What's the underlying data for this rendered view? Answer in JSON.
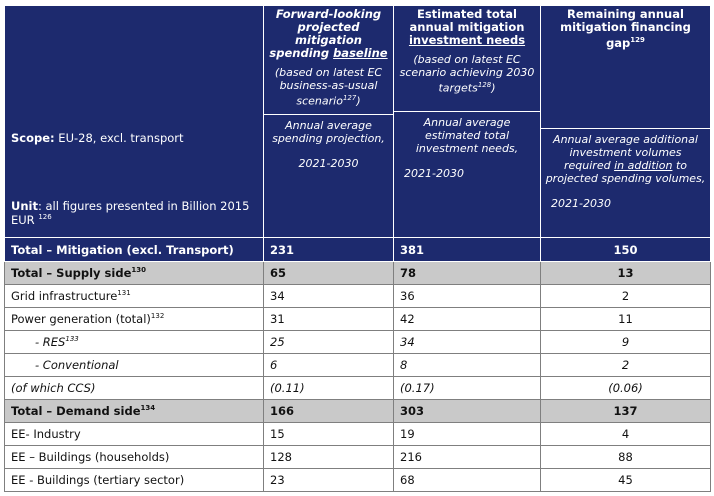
{
  "header": {
    "scope_label": "Scope:",
    "scope_value": "EU-28, excl. transport",
    "unit_label": "Unit",
    "unit_value": ": all figures presented in Billion 2015 EUR",
    "unit_note": "126",
    "col1": {
      "title": "Forward-looking projected mitigation spending",
      "title_underlined": "baseline",
      "sub": "(based on latest EC business-as-usual scenario",
      "sub_note": "127",
      "sub_end": ")",
      "desc": "Annual average spending projection,",
      "period": "2021-2030"
    },
    "col2": {
      "title": "Estimated total annual mitigation",
      "title_underlined": "investment needs",
      "sub": "(based on latest EC scenario achieving 2030 targets",
      "sub_note": "128",
      "sub_end": ")",
      "desc": "Annual average estimated total investment needs,",
      "period": "2021-2030"
    },
    "col3": {
      "title": "Remaining annual mitigation financing gap",
      "title_note": "129",
      "desc_a": "Annual average additional investment volumes required",
      "desc_underlined": "in addition",
      "desc_b": "to projected spending volumes,",
      "period": "2021-2030"
    }
  },
  "rows": [
    {
      "label": "Total – Mitigation (excl. Transport)",
      "note": "",
      "v1": "231",
      "v2": "381",
      "v3": "150"
    },
    {
      "label": "Total – Supply side",
      "note": "130",
      "v1": "65",
      "v2": "78",
      "v3": "13"
    },
    {
      "label": "Grid infrastructure",
      "note": "131",
      "v1": "34",
      "v2": "36",
      "v3": "2"
    },
    {
      "label": "Power generation (total)",
      "note": "132",
      "v1": "31",
      "v2": "42",
      "v3": "11"
    },
    {
      "label": "- RES",
      "note": "133",
      "v1": "25",
      "v2": "34",
      "v3": "9"
    },
    {
      "label": "- Conventional",
      "note": "",
      "v1": "6",
      "v2": "8",
      "v3": "2"
    },
    {
      "label": "(of which CCS)",
      "note": "",
      "v1": "(0.11)",
      "v2": "(0.17)",
      "v3": "(0.06)"
    },
    {
      "label": "Total – Demand side",
      "note": "134",
      "v1": "166",
      "v2": "303",
      "v3": "137"
    },
    {
      "label": "EE- Industry",
      "note": "",
      "v1": "15",
      "v2": "19",
      "v3": "4"
    },
    {
      "label": "EE – Buildings (households)",
      "note": "",
      "v1": "128",
      "v2": "216",
      "v3": "88"
    },
    {
      "label": "EE - Buildings (tertiary sector)",
      "note": "",
      "v1": "23",
      "v2": "68",
      "v3": "45"
    }
  ]
}
